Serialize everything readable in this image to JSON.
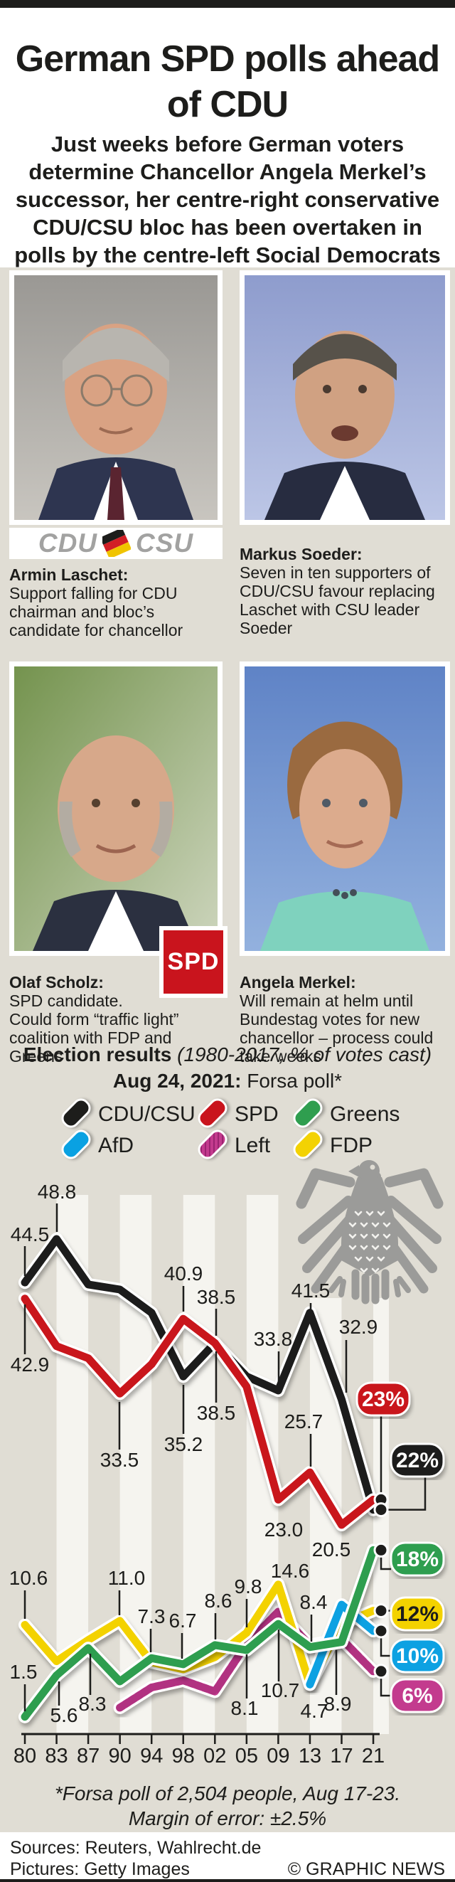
{
  "header": {
    "title": "German SPD polls ahead of CDU",
    "intro": "Just weeks before German voters determine Chancellor Angela Merkel’s successor, her centre-right conservative CDU/CSU bloc has been overtaken in polls by the centre-left Social Democrats"
  },
  "profiles": [
    {
      "name": "Armin Laschet:",
      "text": "Support falling for CDU chairman and bloc’s candidate for chancellor"
    },
    {
      "name": "Markus Soeder:",
      "text": "Seven in ten supporters of CDU/CSU favour replacing Laschet with CSU leader Soeder"
    },
    {
      "name": "Olaf Scholz:",
      "text": "SPD candidate. Could form “traffic light” coalition with FDP and Greens"
    },
    {
      "name": "Angela Merkel:",
      "text": "Will remain at helm until Bundestag votes for new chancellor – process could take weeks"
    }
  ],
  "logos": {
    "cdu": "CDU",
    "csu": "CSU",
    "spd": "SPD"
  },
  "chart_header": {
    "title": "Election results",
    "subtitle": " (1980-2017, % of votes cast)",
    "poll_bold": "Aug 24, 2021:",
    "poll_rest": " Forsa poll*"
  },
  "legend": {
    "items": [
      {
        "label": "CDU/CSU",
        "color": "#1d1d1b",
        "style": "solid"
      },
      {
        "label": "SPD",
        "color": "#c9141d",
        "style": "solid"
      },
      {
        "label": "Greens",
        "color": "#2f9e4f",
        "style": "solid"
      },
      {
        "label": "AfD",
        "color": "#09a1e2",
        "style": "solid"
      },
      {
        "label": "Left",
        "color": "#c33b8e",
        "style": "striped"
      },
      {
        "label": "FDP",
        "color": "#f3d203",
        "style": "solid"
      }
    ]
  },
  "chart_data": {
    "type": "line",
    "title": "Election results (1980-2017, % of votes cast); Aug 24, 2021: Forsa poll*",
    "x_years": [
      "80",
      "83",
      "87",
      "90",
      "94",
      "98",
      "02",
      "05",
      "09",
      "13",
      "17",
      "21"
    ],
    "ylim": [
      0,
      50
    ],
    "grid": "alternating vertical white stripes",
    "legend_position": "top",
    "series": [
      {
        "name": "CDU/CSU",
        "color": "#1d1d1b",
        "values": [
          44.5,
          48.8,
          44.3,
          43.8,
          41.5,
          35.2,
          38.5,
          35.2,
          33.8,
          41.5,
          32.9,
          22
        ]
      },
      {
        "name": "SPD",
        "color": "#c9141d",
        "values": [
          42.9,
          38.2,
          37.0,
          33.5,
          36.4,
          40.9,
          38.5,
          34.2,
          23.0,
          25.7,
          20.5,
          23
        ]
      },
      {
        "name": "Greens",
        "color": "#2f9e4f",
        "values": [
          1.5,
          5.6,
          8.3,
          5.0,
          7.3,
          6.7,
          8.6,
          8.1,
          10.7,
          8.4,
          8.9,
          18
        ]
      },
      {
        "name": "AfD",
        "color": "#09a1e2",
        "values": [
          null,
          null,
          null,
          null,
          null,
          null,
          null,
          null,
          null,
          4.7,
          12.6,
          10
        ]
      },
      {
        "name": "Left",
        "color": "#c33b8e",
        "values": [
          null,
          null,
          null,
          2.4,
          4.4,
          5.1,
          4.0,
          8.7,
          11.9,
          8.6,
          9.2,
          6
        ]
      },
      {
        "name": "FDP",
        "color": "#f3d203",
        "values": [
          10.6,
          7.0,
          9.1,
          11.0,
          6.9,
          6.2,
          7.4,
          9.8,
          14.6,
          4.7,
          10.7,
          12
        ]
      }
    ],
    "poll_badges": [
      {
        "label": "23%",
        "series": "SPD",
        "value": 23,
        "color": "#c9141d",
        "text_color": "#ffffff"
      },
      {
        "label": "22%",
        "series": "CDU/CSU",
        "value": 22,
        "color": "#1d1d1b",
        "text_color": "#ffffff"
      },
      {
        "label": "18%",
        "series": "Greens",
        "value": 18,
        "color": "#2f9e4f",
        "text_color": "#ffffff"
      },
      {
        "label": "12%",
        "series": "FDP",
        "value": 12,
        "color": "#f3d203",
        "text_color": "#1d1d1b"
      },
      {
        "label": "10%",
        "series": "AfD",
        "value": 10,
        "color": "#09a1e2",
        "text_color": "#ffffff"
      },
      {
        "label": "6%",
        "series": "Left",
        "value": 6,
        "color": "#c33b8e",
        "text_color": "#ffffff"
      }
    ],
    "annotations": [
      {
        "text": "44.5",
        "series": "CDU/CSU",
        "year": "80"
      },
      {
        "text": "48.8",
        "series": "CDU/CSU",
        "year": "83"
      },
      {
        "text": "42.9",
        "series": "SPD",
        "year": "80"
      },
      {
        "text": "40.9",
        "series": "SPD",
        "year": "98"
      },
      {
        "text": "38.5",
        "series": "SPD",
        "year": "02"
      },
      {
        "text": "38.5",
        "series": "CDU/CSU",
        "year": "02"
      },
      {
        "text": "35.2",
        "series": "CDU/CSU",
        "year": "98"
      },
      {
        "text": "33.5",
        "series": "SPD",
        "year": "90"
      },
      {
        "text": "33.8",
        "series": "CDU/CSU",
        "year": "09"
      },
      {
        "text": "41.5",
        "series": "CDU/CSU",
        "year": "13"
      },
      {
        "text": "32.9",
        "series": "CDU/CSU",
        "year": "17"
      },
      {
        "text": "25.7",
        "series": "SPD",
        "year": "13"
      },
      {
        "text": "23.0",
        "series": "SPD",
        "year": "09"
      },
      {
        "text": "20.5",
        "series": "SPD",
        "year": "17"
      },
      {
        "text": "10.6",
        "series": "FDP",
        "year": "80"
      },
      {
        "text": "1.5",
        "series": "Greens",
        "year": "80"
      },
      {
        "text": "5.6",
        "series": "Greens",
        "year": "83"
      },
      {
        "text": "8.3",
        "series": "Greens",
        "year": "87"
      },
      {
        "text": "11.0",
        "series": "FDP",
        "year": "90"
      },
      {
        "text": "7.3",
        "series": "Greens",
        "year": "94"
      },
      {
        "text": "6.7",
        "series": "Greens",
        "year": "98"
      },
      {
        "text": "8.6",
        "series": "Greens",
        "year": "02"
      },
      {
        "text": "9.8",
        "series": "FDP",
        "year": "05"
      },
      {
        "text": "8.1",
        "series": "Greens",
        "year": "05"
      },
      {
        "text": "14.6",
        "series": "FDP",
        "year": "09"
      },
      {
        "text": "10.7",
        "series": "Greens",
        "year": "09"
      },
      {
        "text": "8.4",
        "series": "Greens",
        "year": "13"
      },
      {
        "text": "4.7",
        "series": "FDP",
        "year": "13"
      },
      {
        "text": "8.9",
        "series": "Greens",
        "year": "17"
      }
    ]
  },
  "footnote": {
    "line1": "*Forsa poll of 2,504 people, Aug 17-23.",
    "line2": "Margin of error: ±2.5%"
  },
  "footer": {
    "sources": "Sources: Reuters, Wahlrecht.de",
    "pictures": "Pictures: Getty Images",
    "credit": "© GRAPHIC NEWS"
  }
}
